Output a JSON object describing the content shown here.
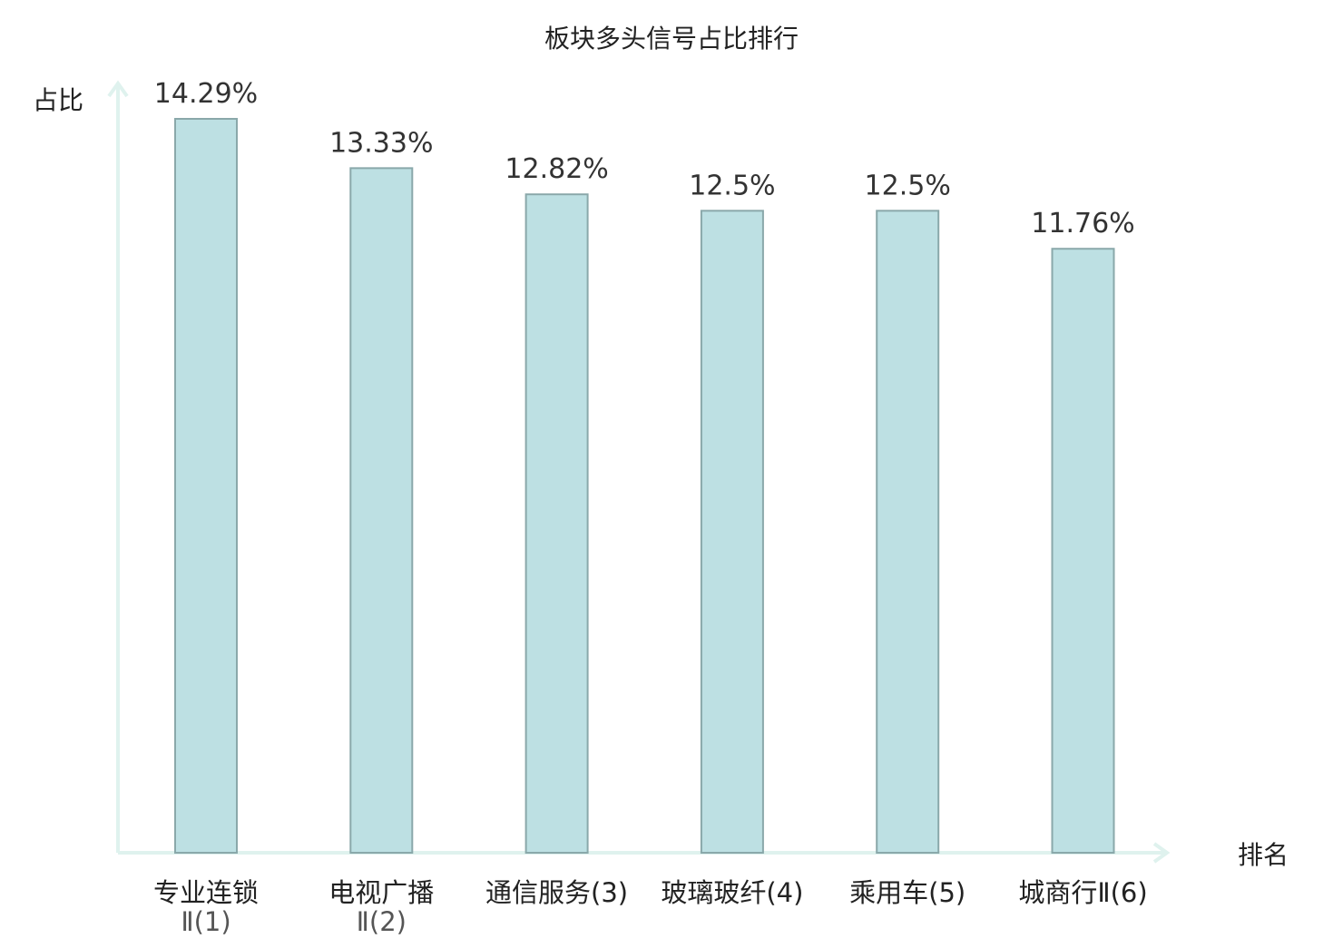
{
  "chart_data": {
    "type": "bar",
    "title": "板块多头信号占比排行",
    "xlabel": "排名",
    "ylabel": "占比",
    "categories": [
      {
        "lines": [
          "专业连锁",
          "Ⅱ(1)"
        ],
        "highlight": false
      },
      {
        "lines": [
          "电视广播",
          "Ⅱ(2)"
        ],
        "highlight": false
      },
      {
        "lines": [
          "通信服务(3)"
        ],
        "highlight": false
      },
      {
        "lines": [
          "玻璃玻纤(4)"
        ],
        "highlight": false
      },
      {
        "lines": [
          "乘用车(5)"
        ],
        "highlight": false
      },
      {
        "lines": [
          "城商行Ⅱ(6)"
        ],
        "highlight": true
      }
    ],
    "values": [
      14.29,
      13.33,
      12.82,
      12.5,
      12.5,
      11.76
    ],
    "value_labels": [
      "14.29%",
      "13.33%",
      "12.82%",
      "12.5%",
      "12.5%",
      "11.76%"
    ],
    "ylim": [
      0,
      14.29
    ],
    "grid": false,
    "colors": {
      "bar_fill": "#bde0e3",
      "bar_stroke": "#8aa8aa",
      "axis": "#dff2ee",
      "highlight_label": "#e02020",
      "text": "#222222"
    }
  }
}
